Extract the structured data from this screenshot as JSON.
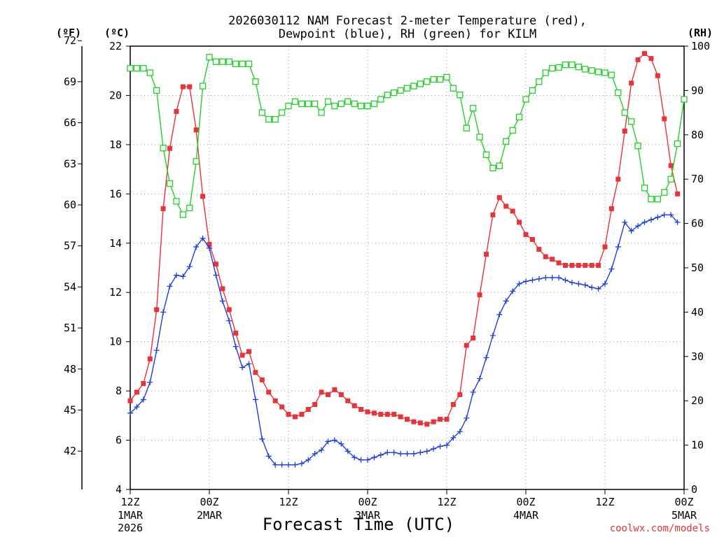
{
  "chart_data": {
    "type": "line",
    "title_lines": [
      "2026030112 NAM Forecast 2-meter Temperature (red),",
      "Dewpoint (blue), RH (green) for KILM"
    ],
    "xlabel": "Forecast Time (UTC)",
    "credit": "coolwx.com/models",
    "unit_labels": {
      "fahrenheit": "(ºF)",
      "celsius": "(ºC)",
      "rh": "(RH)"
    },
    "x_unit": "hours since 2026-03-01 12Z",
    "xlim": [
      0,
      84
    ],
    "x_ticks": [
      {
        "x": 0,
        "label": "12Z",
        "sub": [
          "1MAR",
          "2026"
        ]
      },
      {
        "x": 12,
        "label": "00Z",
        "sub": [
          "2MAR"
        ]
      },
      {
        "x": 24,
        "label": "12Z",
        "sub": []
      },
      {
        "x": 36,
        "label": "00Z",
        "sub": [
          "3MAR"
        ]
      },
      {
        "x": 48,
        "label": "12Z",
        "sub": []
      },
      {
        "x": 60,
        "label": "00Z",
        "sub": [
          "4MAR"
        ]
      },
      {
        "x": 72,
        "label": "12Z",
        "sub": []
      },
      {
        "x": 84,
        "label": "00Z",
        "sub": [
          "5MAR"
        ]
      }
    ],
    "y_celsius": {
      "range": [
        4,
        22
      ],
      "ticks": [
        4,
        6,
        8,
        10,
        12,
        14,
        16,
        18,
        20,
        22
      ]
    },
    "y_fahrenheit": {
      "ticks": [
        42,
        45,
        48,
        51,
        54,
        57,
        60,
        63,
        66,
        69,
        72
      ]
    },
    "y_rh": {
      "range": [
        0,
        100
      ],
      "ticks": [
        0,
        10,
        20,
        30,
        40,
        50,
        60,
        70,
        80,
        90,
        100
      ]
    },
    "series": [
      {
        "name": "2-meter Temperature",
        "axis": "celsius",
        "color": "#e8333a",
        "marker": "filled-square",
        "points": [
          [
            0,
            7.6
          ],
          [
            1,
            7.95
          ],
          [
            2,
            8.3
          ],
          [
            3,
            9.3
          ],
          [
            4,
            11.3
          ],
          [
            5,
            15.4
          ],
          [
            6,
            17.85
          ],
          [
            7,
            19.35
          ],
          [
            8,
            20.35
          ],
          [
            9,
            20.35
          ],
          [
            10,
            18.6
          ],
          [
            11,
            15.9
          ],
          [
            12,
            13.95
          ],
          [
            13,
            13.15
          ],
          [
            14,
            12.15
          ],
          [
            15,
            11.3
          ],
          [
            16,
            10.35
          ],
          [
            17,
            9.45
          ],
          [
            18,
            9.6
          ],
          [
            19,
            8.75
          ],
          [
            20,
            8.45
          ],
          [
            21,
            7.95
          ],
          [
            22,
            7.6
          ],
          [
            23,
            7.35
          ],
          [
            24,
            7.05
          ],
          [
            25,
            6.95
          ],
          [
            26,
            7.05
          ],
          [
            27,
            7.25
          ],
          [
            28,
            7.45
          ],
          [
            29,
            7.95
          ],
          [
            30,
            7.85
          ],
          [
            31,
            8.05
          ],
          [
            32,
            7.85
          ],
          [
            33,
            7.6
          ],
          [
            34,
            7.4
          ],
          [
            35,
            7.25
          ],
          [
            36,
            7.15
          ],
          [
            37,
            7.1
          ],
          [
            38,
            7.05
          ],
          [
            39,
            7.05
          ],
          [
            40,
            7.05
          ],
          [
            41,
            6.95
          ],
          [
            42,
            6.85
          ],
          [
            43,
            6.75
          ],
          [
            44,
            6.7
          ],
          [
            45,
            6.65
          ],
          [
            46,
            6.75
          ],
          [
            47,
            6.85
          ],
          [
            48,
            6.85
          ],
          [
            49,
            7.45
          ],
          [
            50,
            7.85
          ],
          [
            51,
            9.85
          ],
          [
            52,
            10.15
          ],
          [
            53,
            11.9
          ],
          [
            54,
            13.55
          ],
          [
            55,
            15.15
          ],
          [
            56,
            15.85
          ],
          [
            57,
            15.5
          ],
          [
            58,
            15.3
          ],
          [
            59,
            14.85
          ],
          [
            60,
            14.35
          ],
          [
            61,
            14.15
          ],
          [
            62,
            13.75
          ],
          [
            63,
            13.45
          ],
          [
            64,
            13.35
          ],
          [
            65,
            13.2
          ],
          [
            66,
            13.1
          ],
          [
            67,
            13.1
          ],
          [
            68,
            13.1
          ],
          [
            69,
            13.1
          ],
          [
            70,
            13.1
          ],
          [
            71,
            13.1
          ],
          [
            72,
            13.85
          ],
          [
            73,
            15.4
          ],
          [
            74,
            16.6
          ],
          [
            75,
            18.55
          ],
          [
            76,
            20.5
          ],
          [
            77,
            21.45
          ],
          [
            78,
            21.7
          ],
          [
            79,
            21.5
          ],
          [
            80,
            20.8
          ],
          [
            81,
            19.05
          ],
          [
            82,
            17.15
          ],
          [
            83,
            16.0
          ]
        ]
      },
      {
        "name": "Dewpoint",
        "axis": "celsius",
        "color": "#1f3fdc",
        "marker": "plus",
        "points": [
          [
            0,
            7.1
          ],
          [
            1,
            7.35
          ],
          [
            2,
            7.65
          ],
          [
            3,
            8.35
          ],
          [
            4,
            9.65
          ],
          [
            5,
            11.2
          ],
          [
            6,
            12.25
          ],
          [
            7,
            12.7
          ],
          [
            8,
            12.65
          ],
          [
            9,
            13.05
          ],
          [
            10,
            13.85
          ],
          [
            11,
            14.2
          ],
          [
            12,
            13.8
          ],
          [
            13,
            12.7
          ],
          [
            14,
            11.65
          ],
          [
            15,
            10.85
          ],
          [
            16,
            9.8
          ],
          [
            17,
            8.95
          ],
          [
            18,
            9.1
          ],
          [
            19,
            7.65
          ],
          [
            20,
            6.05
          ],
          [
            21,
            5.35
          ],
          [
            22,
            5.0
          ],
          [
            23,
            5.0
          ],
          [
            24,
            5.0
          ],
          [
            25,
            5.0
          ],
          [
            26,
            5.05
          ],
          [
            27,
            5.2
          ],
          [
            28,
            5.45
          ],
          [
            29,
            5.6
          ],
          [
            30,
            5.95
          ],
          [
            31,
            6.0
          ],
          [
            32,
            5.85
          ],
          [
            33,
            5.55
          ],
          [
            34,
            5.3
          ],
          [
            35,
            5.2
          ],
          [
            36,
            5.2
          ],
          [
            37,
            5.3
          ],
          [
            38,
            5.4
          ],
          [
            39,
            5.5
          ],
          [
            40,
            5.5
          ],
          [
            41,
            5.45
          ],
          [
            42,
            5.45
          ],
          [
            43,
            5.45
          ],
          [
            44,
            5.5
          ],
          [
            45,
            5.55
          ],
          [
            46,
            5.65
          ],
          [
            47,
            5.75
          ],
          [
            48,
            5.8
          ],
          [
            49,
            6.1
          ],
          [
            50,
            6.35
          ],
          [
            51,
            6.9
          ],
          [
            52,
            7.95
          ],
          [
            53,
            8.5
          ],
          [
            54,
            9.35
          ],
          [
            55,
            10.25
          ],
          [
            56,
            11.1
          ],
          [
            57,
            11.65
          ],
          [
            58,
            12.05
          ],
          [
            59,
            12.35
          ],
          [
            60,
            12.45
          ],
          [
            61,
            12.5
          ],
          [
            62,
            12.55
          ],
          [
            63,
            12.6
          ],
          [
            64,
            12.6
          ],
          [
            65,
            12.6
          ],
          [
            66,
            12.5
          ],
          [
            67,
            12.4
          ],
          [
            68,
            12.35
          ],
          [
            69,
            12.3
          ],
          [
            70,
            12.2
          ],
          [
            71,
            12.15
          ],
          [
            72,
            12.35
          ],
          [
            73,
            12.95
          ],
          [
            74,
            13.85
          ],
          [
            75,
            14.85
          ],
          [
            76,
            14.5
          ],
          [
            77,
            14.7
          ],
          [
            78,
            14.85
          ],
          [
            79,
            14.95
          ],
          [
            80,
            15.05
          ],
          [
            81,
            15.15
          ],
          [
            82,
            15.15
          ],
          [
            83,
            14.85
          ]
        ]
      },
      {
        "name": "RH",
        "axis": "rh",
        "color": "#22d028",
        "marker": "open-square",
        "points": [
          [
            0,
            95
          ],
          [
            1,
            95
          ],
          [
            2,
            95
          ],
          [
            3,
            94
          ],
          [
            4,
            90
          ],
          [
            5,
            77
          ],
          [
            6,
            69
          ],
          [
            7,
            65
          ],
          [
            8,
            62
          ],
          [
            9,
            63.5
          ],
          [
            10,
            74
          ],
          [
            11,
            91
          ],
          [
            12,
            97.5
          ],
          [
            13,
            96.5
          ],
          [
            14,
            96.5
          ],
          [
            15,
            96.5
          ],
          [
            16,
            96
          ],
          [
            17,
            96
          ],
          [
            18,
            96
          ],
          [
            19,
            92
          ],
          [
            20,
            85
          ],
          [
            21,
            83.5
          ],
          [
            22,
            83.5
          ],
          [
            23,
            85
          ],
          [
            24,
            86.5
          ],
          [
            25,
            87.5
          ],
          [
            26,
            87
          ],
          [
            27,
            87
          ],
          [
            28,
            87
          ],
          [
            29,
            85
          ],
          [
            30,
            87.5
          ],
          [
            31,
            86.5
          ],
          [
            32,
            87
          ],
          [
            33,
            87.5
          ],
          [
            34,
            87
          ],
          [
            35,
            86.5
          ],
          [
            36,
            86.5
          ],
          [
            37,
            87
          ],
          [
            38,
            88
          ],
          [
            39,
            89
          ],
          [
            40,
            89.5
          ],
          [
            41,
            90
          ],
          [
            42,
            90.5
          ],
          [
            43,
            91
          ],
          [
            44,
            91.5
          ],
          [
            45,
            92
          ],
          [
            46,
            92.5
          ],
          [
            47,
            92.5
          ],
          [
            48,
            93
          ],
          [
            49,
            90.5
          ],
          [
            50,
            89
          ],
          [
            51,
            81.5
          ],
          [
            52,
            86
          ],
          [
            53,
            79.5
          ],
          [
            54,
            75.5
          ],
          [
            55,
            72.5
          ],
          [
            56,
            73
          ],
          [
            57,
            78.5
          ],
          [
            58,
            81
          ],
          [
            59,
            84
          ],
          [
            60,
            88
          ],
          [
            61,
            90
          ],
          [
            62,
            92
          ],
          [
            63,
            94
          ],
          [
            64,
            95
          ],
          [
            65,
            95.2
          ],
          [
            66,
            95.8
          ],
          [
            67,
            95.8
          ],
          [
            68,
            95.3
          ],
          [
            69,
            94.8
          ],
          [
            70,
            94.5
          ],
          [
            71,
            94.2
          ],
          [
            72,
            94
          ],
          [
            73,
            93.5
          ],
          [
            74,
            89.5
          ],
          [
            75,
            85
          ],
          [
            76,
            83
          ],
          [
            77,
            77.5
          ],
          [
            78,
            68
          ],
          [
            79,
            65.5
          ],
          [
            80,
            65.5
          ],
          [
            81,
            67
          ],
          [
            82,
            70
          ],
          [
            83,
            78
          ],
          [
            84,
            88
          ]
        ]
      }
    ]
  }
}
